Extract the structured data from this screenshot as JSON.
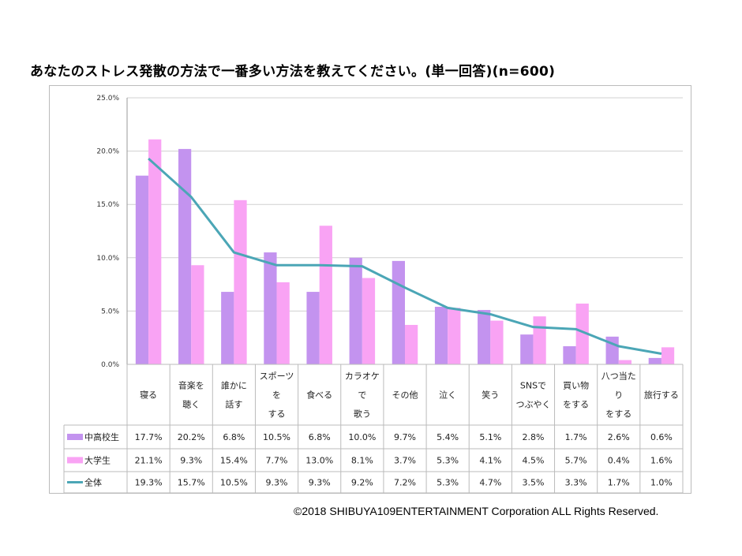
{
  "title": "あなたのストレス発散の方法で一番多い方法を教えてください。(単一回答)(n=600)",
  "copyright": "©2018  SHIBUYA109ENTERTAINMENT Corporation   ALL Rights Reserved.",
  "chart_data": {
    "type": "bar+line",
    "title": "あなたのストレス発散の方法で一番多い方法を教えてください。(単一回答)(n=600)",
    "categories": [
      [
        "寝る"
      ],
      [
        "音楽を",
        "聴く"
      ],
      [
        "誰かに",
        "話す"
      ],
      [
        "スポーツ",
        "を",
        "する"
      ],
      [
        "食べる"
      ],
      [
        "カラオケ",
        "で",
        "歌う"
      ],
      [
        "その他"
      ],
      [
        "泣く"
      ],
      [
        "笑う"
      ],
      [
        "SNSで",
        "つぶやく"
      ],
      [
        "買い物",
        "をする"
      ],
      [
        "八つ当た",
        "り",
        "をする"
      ],
      [
        "旅行する"
      ]
    ],
    "series": [
      {
        "name": "中高校生",
        "kind": "bar",
        "color": "#c393ef",
        "values": [
          17.7,
          20.2,
          6.8,
          10.5,
          6.8,
          10.0,
          9.7,
          5.4,
          5.1,
          2.8,
          1.7,
          2.6,
          0.6
        ],
        "labels": [
          "17.7%",
          "20.2%",
          "6.8%",
          "10.5%",
          "6.8%",
          "10.0%",
          "9.7%",
          "5.4%",
          "5.1%",
          "2.8%",
          "1.7%",
          "2.6%",
          "0.6%"
        ]
      },
      {
        "name": "大学生",
        "kind": "bar",
        "color": "#f9a3f4",
        "values": [
          21.1,
          9.3,
          15.4,
          7.7,
          13.0,
          8.1,
          3.7,
          5.3,
          4.1,
          4.5,
          5.7,
          0.4,
          1.6
        ],
        "labels": [
          "21.1%",
          "9.3%",
          "15.4%",
          "7.7%",
          "13.0%",
          "8.1%",
          "3.7%",
          "5.3%",
          "4.1%",
          "4.5%",
          "5.7%",
          "0.4%",
          "1.6%"
        ]
      },
      {
        "name": "全体",
        "kind": "line",
        "color": "#4ba6b6",
        "values": [
          19.3,
          15.7,
          10.5,
          9.3,
          9.3,
          9.2,
          7.2,
          5.3,
          4.7,
          3.5,
          3.3,
          1.7,
          1.0
        ],
        "labels": [
          "19.3%",
          "15.7%",
          "10.5%",
          "9.3%",
          "9.3%",
          "9.2%",
          "7.2%",
          "5.3%",
          "4.7%",
          "3.5%",
          "3.3%",
          "1.7%",
          "1.0%"
        ]
      }
    ],
    "ylim": [
      0,
      25
    ],
    "yticks": [
      "0.0%",
      "5.0%",
      "10.0%",
      "15.0%",
      "20.0%",
      "25.0%"
    ],
    "grid": true,
    "legend": "data-table"
  }
}
